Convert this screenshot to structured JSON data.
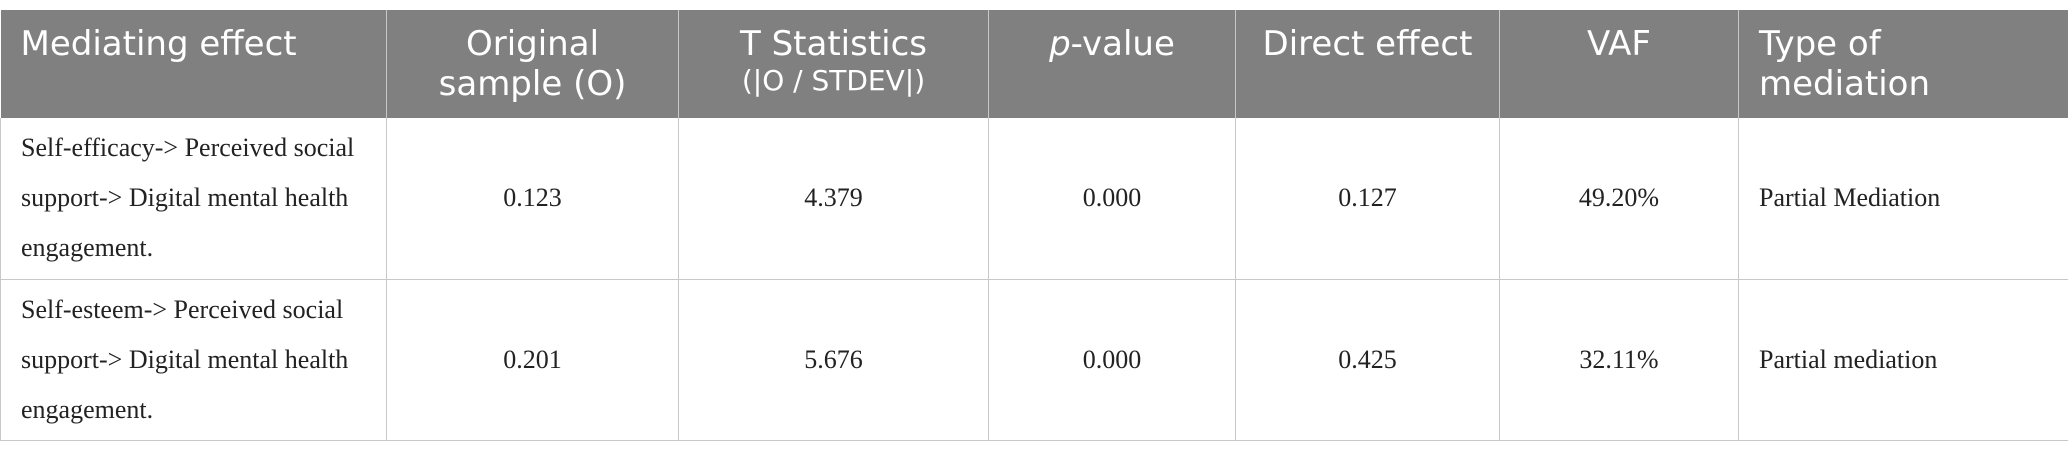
{
  "table": {
    "headers": {
      "mediating_effect": "Mediating effect",
      "original_sample": "Original sample (O)",
      "t_statistics": "T Statistics",
      "t_statistics_sub": "(|O / STDEV|)",
      "p_value_italic": "p",
      "p_value_rest": "-value",
      "direct_effect": "Direct effect",
      "vaf": "VAF",
      "type_of_mediation": "Type of mediation"
    },
    "rows": [
      {
        "mediating_effect": "Self-efficacy-> Perceived social support-> Digital mental health engagement.",
        "original_sample": "0.123",
        "t_statistics": "4.379",
        "p_value": "0.000",
        "direct_effect": "0.127",
        "vaf": "49.20%",
        "type_of_mediation": "Partial Mediation"
      },
      {
        "mediating_effect": "Self-esteem-> Perceived social support-> Digital mental health engagement.",
        "original_sample": "0.201",
        "t_statistics": "5.676",
        "p_value": "0.000",
        "direct_effect": "0.425",
        "vaf": "32.11%",
        "type_of_mediation": "Partial mediation"
      }
    ]
  }
}
